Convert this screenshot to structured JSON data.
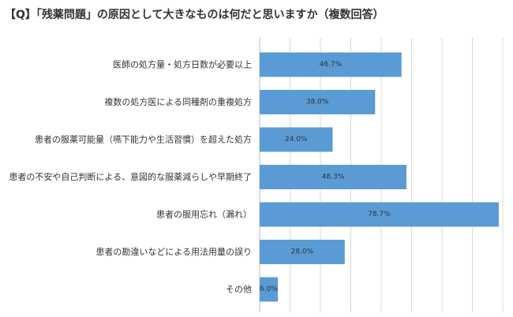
{
  "chart_data": {
    "type": "bar",
    "orientation": "horizontal",
    "title": "【Q】「残薬問題」の原因として大きなものは何だと思いますか（複数回答）",
    "categories": [
      "医師の処方量・処方日数が必要以上",
      "複数の処方医による同種剤の重複処方",
      "患者の服薬可能量（嚥下能力や生活習慣）を超えた処方",
      "患者の不安や自己判断による、意図的な服薬減らしや早期終了",
      "患者の服用忘れ（漏れ）",
      "患者の勘違いなどによる用法用量の誤り",
      "その他"
    ],
    "values": [
      46.7,
      38.0,
      24.0,
      48.3,
      78.7,
      28.0,
      6.0
    ],
    "value_labels": [
      "46.7%",
      "38.0%",
      "24.0%",
      "48.3%",
      "78.7%",
      "28.0%",
      "6.0%"
    ],
    "xlim": [
      0,
      80
    ],
    "grid": true,
    "bar_color": "#5b9bd5",
    "grid_color": "#d9d9d9"
  }
}
